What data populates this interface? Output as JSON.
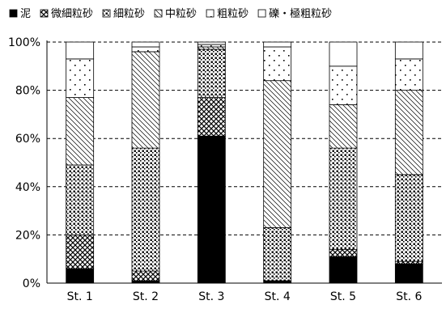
{
  "chart_data": {
    "type": "bar",
    "stacked": true,
    "categories": [
      "St. 1",
      "St. 2",
      "St. 3",
      "St. 4",
      "St. 5",
      "St. 6"
    ],
    "series": [
      {
        "name": "泥",
        "pattern": "solid",
        "values": [
          6,
          1,
          61,
          1,
          11,
          8
        ]
      },
      {
        "name": "微細粒砂",
        "pattern": "crosshatch",
        "values": [
          14,
          4,
          16,
          0,
          3,
          1
        ]
      },
      {
        "name": "細粒砂",
        "pattern": "dots-dense",
        "values": [
          29,
          51,
          20,
          22,
          42,
          36
        ]
      },
      {
        "name": "中粒砂",
        "pattern": "diagonal",
        "values": [
          28,
          40,
          1,
          61,
          18,
          35
        ]
      },
      {
        "name": "粗粒砂",
        "pattern": "dots-sparse",
        "values": [
          16,
          2,
          1,
          14,
          16,
          13
        ]
      },
      {
        "name": "礫・極粗粒砂",
        "pattern": "blank",
        "values": [
          7,
          2,
          1,
          2,
          10,
          7
        ]
      }
    ],
    "ylim": [
      0,
      100
    ],
    "yticks": [
      "0%",
      "20%",
      "40%",
      "60%",
      "80%",
      "100%"
    ],
    "grid": "horizontal-dashed",
    "legend_position": "top"
  }
}
